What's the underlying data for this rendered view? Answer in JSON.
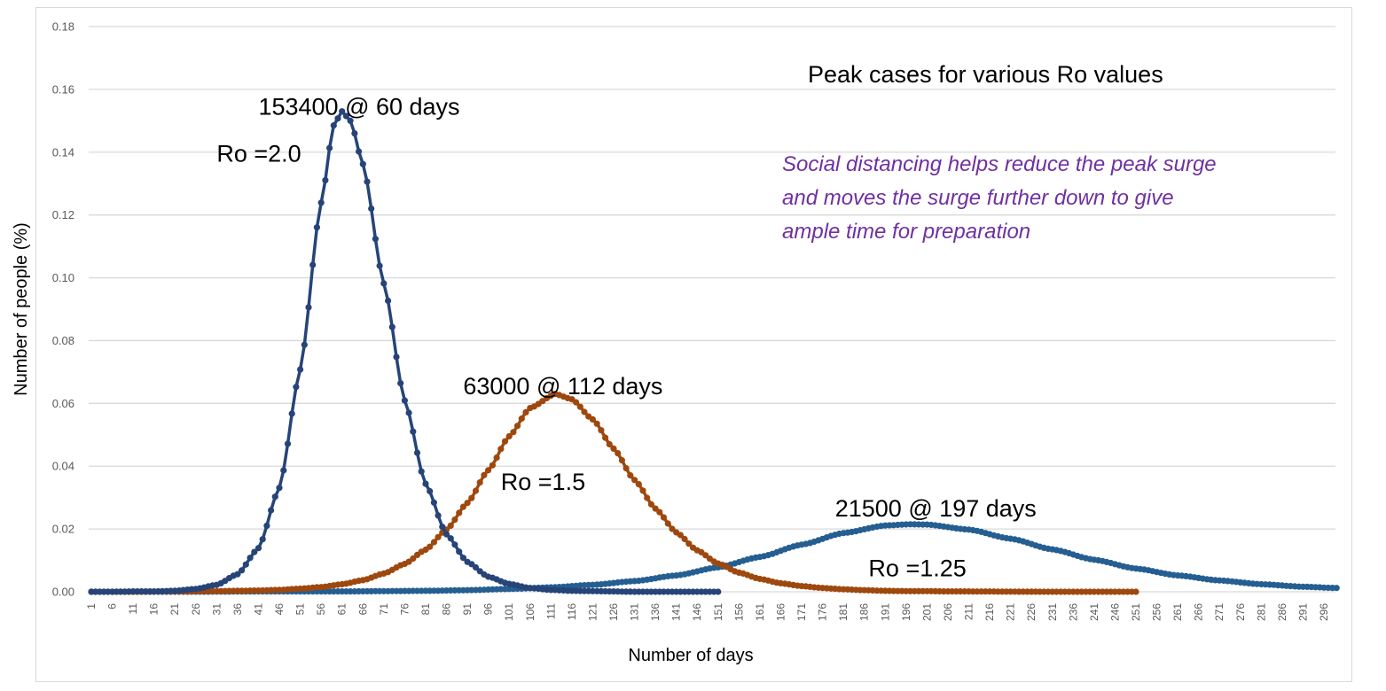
{
  "chart_data": {
    "type": "line",
    "title": "Peak cases for various Ro values",
    "xlabel": "Number of days",
    "ylabel": "Number of people (%)",
    "ylim": [
      0,
      0.18
    ],
    "yticks": [
      "0.00",
      "0.02",
      "0.04",
      "0.06",
      "0.08",
      "0.10",
      "0.12",
      "0.14",
      "0.16",
      "0.18"
    ],
    "ytick_values": [
      0,
      0.02,
      0.04,
      0.06,
      0.08,
      0.1,
      0.12,
      0.14,
      0.16,
      0.18
    ],
    "x_range": [
      1,
      299
    ],
    "xtick_start": 1,
    "xtick_step": 5,
    "xtick_end": 296,
    "grid": true,
    "series": [
      {
        "name": "Ro =2.0",
        "color": "#264478",
        "days": [
          1,
          6,
          11,
          16,
          21,
          26,
          31,
          36,
          41,
          46,
          51,
          56,
          59,
          61,
          63,
          66,
          71,
          76,
          81,
          86,
          91,
          96,
          101,
          106,
          111,
          116,
          121,
          126,
          131,
          141,
          151
        ],
        "values": [
          0.0,
          0.0,
          0.0001,
          0.0001,
          0.0003,
          0.0009,
          0.0022,
          0.0056,
          0.0139,
          0.0331,
          0.0708,
          0.1239,
          0.1485,
          0.153,
          0.15,
          0.1362,
          0.0982,
          0.0609,
          0.0344,
          0.0183,
          0.0095,
          0.0048,
          0.0025,
          0.0012,
          0.0006,
          0.0003,
          0.0002,
          0.0001,
          0.0,
          0.0,
          0.0
        ]
      },
      {
        "name": "Ro =1.5",
        "color": "#9E480E",
        "days": [
          1,
          11,
          21,
          31,
          36,
          41,
          46,
          51,
          56,
          61,
          66,
          71,
          76,
          81,
          86,
          91,
          96,
          101,
          106,
          112,
          116,
          121,
          126,
          131,
          136,
          141,
          146,
          151,
          156,
          161,
          166,
          171,
          176,
          181,
          186,
          191,
          196,
          201,
          206,
          211,
          231,
          251
        ],
        "values": [
          0.0,
          0.0,
          0.0001,
          0.0002,
          0.0003,
          0.0004,
          0.0006,
          0.001,
          0.0015,
          0.0024,
          0.0037,
          0.0058,
          0.0089,
          0.0134,
          0.0198,
          0.0283,
          0.0387,
          0.0495,
          0.0585,
          0.063,
          0.0613,
          0.0549,
          0.0456,
          0.0356,
          0.0265,
          0.0189,
          0.0132,
          0.009,
          0.0061,
          0.0041,
          0.0027,
          0.0018,
          0.0012,
          0.0008,
          0.0005,
          0.0003,
          0.0002,
          0.0002,
          0.0001,
          0.0001,
          0.0,
          0.0
        ]
      },
      {
        "name": "Ro =1.25",
        "color": "#255E91",
        "days": [
          1,
          21,
          41,
          61,
          71,
          81,
          91,
          101,
          111,
          121,
          131,
          141,
          151,
          161,
          171,
          181,
          191,
          197,
          201,
          211,
          221,
          231,
          241,
          251,
          261,
          271,
          281,
          291,
          299
        ],
        "values": [
          0.0,
          0.0,
          0.0001,
          0.0001,
          0.0002,
          0.0003,
          0.0005,
          0.0009,
          0.0014,
          0.0022,
          0.0034,
          0.0052,
          0.0078,
          0.0111,
          0.015,
          0.0187,
          0.0211,
          0.0215,
          0.0214,
          0.0198,
          0.0169,
          0.0135,
          0.0102,
          0.0074,
          0.0052,
          0.0036,
          0.0024,
          0.0016,
          0.0012
        ]
      }
    ],
    "annotations": [
      {
        "id": "peak-ro2",
        "text": "153400 @ 60 days",
        "day": 41,
        "y": 0.1545
      },
      {
        "id": "label-ro2",
        "text": "Ro =2.0",
        "day": 31,
        "y": 0.1395
      },
      {
        "id": "peak-ro15",
        "text": "63000 @ 112 days",
        "day": 90,
        "y": 0.0655
      },
      {
        "id": "label-ro15",
        "text": "Ro =1.5",
        "day": 99,
        "y": 0.035
      },
      {
        "id": "peak-ro125",
        "text": "21500 @ 197 days",
        "day": 179,
        "y": 0.0265
      },
      {
        "id": "label-ro125",
        "text": "Ro =1.25",
        "day": 187,
        "y": 0.0075
      }
    ],
    "note": {
      "lines": [
        "Social distancing helps reduce the peak surge",
        "and moves the surge further down to give",
        "ample time for preparation"
      ],
      "color": "#7030A0"
    }
  }
}
